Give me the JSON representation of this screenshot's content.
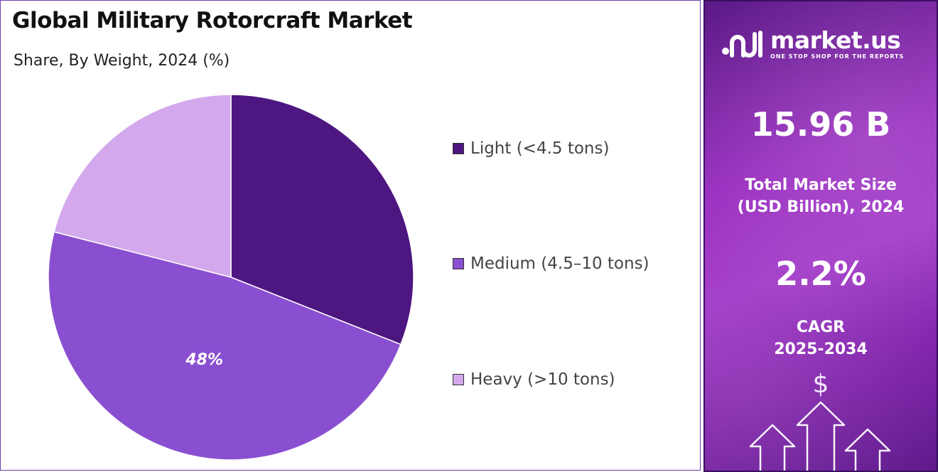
{
  "title": "Global Military Rotorcraft Market",
  "subtitle": "Share, By Weight, 2024 (%)",
  "chart_data": {
    "type": "pie",
    "title": "Global Military Rotorcraft Market",
    "subtitle": "Share, By Weight, 2024 (%)",
    "categories": [
      "Light (<4.5 tons)",
      "Medium (4.5–10 tons)",
      "Heavy (>10 tons)"
    ],
    "values": [
      31,
      48,
      21
    ],
    "colors": [
      "#4e1680",
      "#8a4fd0",
      "#d3a8ec"
    ],
    "data_labels": [
      "",
      "48%",
      ""
    ],
    "legend_position": "right",
    "start_angle": "top, clockwise"
  },
  "legend": {
    "items": [
      {
        "label": "Light (<4.5 tons)",
        "color": "#4e1680"
      },
      {
        "label": "Medium (4.5–10 tons)",
        "color": "#8a4fd0"
      },
      {
        "label": "Heavy (>10 tons)",
        "color": "#d3a8ec"
      }
    ]
  },
  "sidebar": {
    "brand": "market.us",
    "tagline": "ONE STOP SHOP FOR THE REPORTS",
    "market_size": "15.96 B",
    "market_size_label_1": "Total Market Size",
    "market_size_label_2": "(USD Billion), 2024",
    "cagr_value": "2.2%",
    "cagr_label_1": "CAGR",
    "cagr_label_2": "2025-2034",
    "dollar_symbol": "$"
  }
}
